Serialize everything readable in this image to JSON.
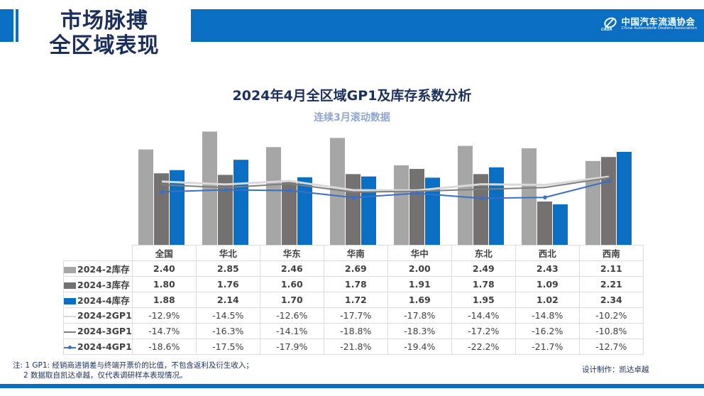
{
  "header": {
    "title_line1": "市场脉搏",
    "title_line2": "全区域表现",
    "logo_cn": "中国汽车流通协会",
    "logo_en": "China Automobile Dealers Association",
    "logo_mark": "CADA"
  },
  "colors": {
    "brand_blue": "#0a6fc2",
    "inv_2024_2": "#a6a6a6",
    "inv_2024_3": "#767171",
    "inv_2024_4": "#0a6fc2",
    "gp1_2024_2": "#d9d9d9",
    "gp1_2024_3": "#7f7f7f",
    "gp1_2024_4": "#3a6fc4"
  },
  "chart_data": {
    "type": "bar",
    "title": "2024年4月全区域GP1及库存系数分析",
    "subtitle": "连续3月滚动数据",
    "categories": [
      "全国",
      "华北",
      "华东",
      "华南",
      "华中",
      "东北",
      "西北",
      "西南"
    ],
    "bar_axis_range": [
      0,
      3
    ],
    "line_axis_range": [
      -48,
      0
    ],
    "grid": false,
    "legend": "data-table-left",
    "series": [
      {
        "name": "2024-2库存",
        "type": "bar",
        "values": [
          2.4,
          2.85,
          2.46,
          2.69,
          2.0,
          2.49,
          2.43,
          2.11
        ],
        "display": [
          "2.40",
          "2.85",
          "2.46",
          "2.69",
          "2.00",
          "2.49",
          "2.43",
          "2.11"
        ]
      },
      {
        "name": "2024-3库存",
        "type": "bar",
        "values": [
          1.8,
          1.76,
          1.6,
          1.78,
          1.91,
          1.78,
          1.09,
          2.21
        ],
        "display": [
          "1.80",
          "1.76",
          "1.60",
          "1.78",
          "1.91",
          "1.78",
          "1.09",
          "2.21"
        ]
      },
      {
        "name": "2024-4库存",
        "type": "bar",
        "values": [
          1.88,
          2.14,
          1.7,
          1.72,
          1.69,
          1.95,
          1.02,
          2.34
        ],
        "display": [
          "1.88",
          "2.14",
          "1.70",
          "1.72",
          "1.69",
          "1.95",
          "1.02",
          "2.34"
        ]
      },
      {
        "name": "2024-2GP1",
        "type": "line",
        "values": [
          -12.9,
          -14.5,
          -12.6,
          -17.7,
          -17.8,
          -14.4,
          -14.8,
          -10.2
        ],
        "display": [
          "-12.9%",
          "-14.5%",
          "-12.6%",
          "-17.7%",
          "-17.8%",
          "-14.4%",
          "-14.8%",
          "-10.2%"
        ]
      },
      {
        "name": "2024-3GP1",
        "type": "line",
        "values": [
          -14.7,
          -16.3,
          -14.1,
          -18.8,
          -18.3,
          -17.2,
          -16.2,
          -10.8
        ],
        "display": [
          "-14.7%",
          "-16.3%",
          "-14.1%",
          "-18.8%",
          "-18.3%",
          "-17.2%",
          "-16.2%",
          "-10.8%"
        ]
      },
      {
        "name": "2024-4GP1",
        "type": "line",
        "markers": true,
        "values": [
          -18.6,
          -17.5,
          -17.9,
          -21.8,
          -19.4,
          -22.2,
          -21.7,
          -12.7
        ],
        "display": [
          "-18.6%",
          "-17.5%",
          "-17.9%",
          "-21.8%",
          "-19.4%",
          "-22.2%",
          "-21.7%",
          "-12.7%"
        ]
      }
    ]
  },
  "footer": {
    "note_line1": "注: 1 GP1: 经销商进销差与终端开票价的比值，不包含返利及衍生收入；",
    "note_line2": "2 数据取自凯达卓越，仅代表调研样本表现情况。",
    "credit": "设计制作：凯达卓越"
  }
}
